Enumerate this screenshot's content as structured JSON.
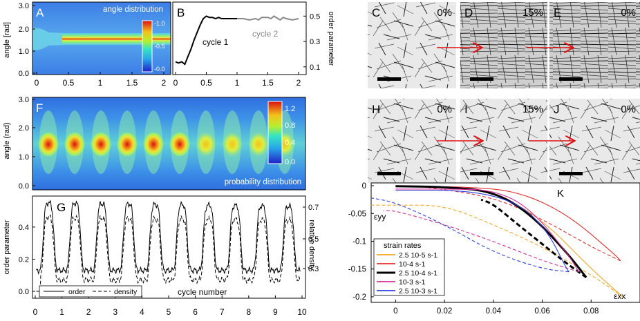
{
  "panels": {
    "A": {
      "label": "A",
      "title": "angle distribution",
      "ylabel": "angle [rad]",
      "y_ticks": [
        "3.0",
        "2.0",
        "1.0",
        "0.0"
      ],
      "x_ticks": [
        "0",
        "0.5",
        "1",
        "1.5",
        "2"
      ],
      "colorbar_ticks": [
        "1.0",
        "0.5",
        "0.0"
      ]
    },
    "B": {
      "label": "B",
      "y2label": "order parameter",
      "y_ticks": [
        "0.5",
        "0.3",
        "0.1"
      ],
      "x_ticks": [
        "0",
        "0.5",
        "1",
        "1.5",
        "2"
      ],
      "annotations": [
        "cycle 1",
        "cycle 2"
      ]
    },
    "F": {
      "label": "F",
      "title": "probability distribution",
      "ylabel": "angle (rad)",
      "y_ticks": [
        "3.0",
        "2.0",
        "1.0",
        "0.0"
      ],
      "colorbar_ticks": [
        "1.2",
        "0.8",
        "0.4",
        "0.0"
      ]
    },
    "G": {
      "label": "G",
      "ylabel": "order parameter",
      "y2label": "relative density",
      "y_ticks": [
        "0.4",
        "0.2",
        "0.0"
      ],
      "y2_ticks": [
        "0.7",
        "0.5",
        "0.3"
      ],
      "x_ticks": [
        "0",
        "1",
        "2",
        "3",
        "4",
        "5",
        "6",
        "7",
        "8",
        "9",
        "10"
      ],
      "xlabel": "cycle number",
      "legend": [
        "order",
        "density"
      ]
    },
    "K": {
      "label": "K",
      "ylabel": "εyy",
      "xlabel": "εxx",
      "y_ticks": [
        "0",
        "-0.05",
        "-0.1",
        "-0.15",
        "-0.2"
      ],
      "x_ticks": [
        "0",
        "0.02",
        "0.04",
        "0.06",
        "0.08"
      ],
      "legend_title": "strain rates",
      "legend": [
        "2.5 10-5 s-1",
        "10-4 s-1",
        "2.5 10-4 s-1",
        "10-3 s-1",
        "2.5 10-3 s-1"
      ]
    }
  },
  "image_panels": [
    {
      "label": "C",
      "pct": "0%"
    },
    {
      "label": "D",
      "pct": "15%"
    },
    {
      "label": "E",
      "pct": "0%"
    },
    {
      "label": "H",
      "pct": "0%"
    },
    {
      "label": "I",
      "pct": "15%"
    },
    {
      "label": "J",
      "pct": "0%"
    }
  ],
  "chart_data": [
    {
      "type": "heatmap",
      "panel": "A",
      "title": "angle distribution",
      "ylabel": "angle [rad]",
      "xlim": [
        0,
        2
      ],
      "ylim": [
        0,
        3
      ],
      "colorbar_range": [
        0,
        1.0
      ]
    },
    {
      "type": "line",
      "panel": "B",
      "ylabel": "order parameter",
      "xlim": [
        0,
        2
      ],
      "ylim": [
        0.05,
        0.6
      ],
      "series": [
        {
          "name": "cycle 1",
          "x": [
            0,
            0.05,
            0.1,
            0.15,
            0.2,
            0.25,
            0.3,
            0.35,
            0.4,
            0.45,
            0.5,
            0.55,
            0.6,
            0.65,
            0.7,
            0.75,
            0.8,
            0.85,
            0.9,
            0.95,
            1.0
          ],
          "y": [
            0.14,
            0.13,
            0.14,
            0.12,
            0.18,
            0.24,
            0.31,
            0.37,
            0.43,
            0.48,
            0.5,
            0.49,
            0.49,
            0.48,
            0.49,
            0.48,
            0.48,
            0.48,
            0.48,
            0.48,
            0.48
          ]
        },
        {
          "name": "cycle 2",
          "x": [
            1.0,
            1.1,
            1.2,
            1.3,
            1.35,
            1.4,
            1.5,
            1.55,
            1.6,
            1.7,
            1.75,
            1.8,
            1.9,
            2.0
          ],
          "y": [
            0.48,
            0.48,
            0.47,
            0.48,
            0.47,
            0.49,
            0.49,
            0.48,
            0.5,
            0.47,
            0.49,
            0.48,
            0.47,
            0.48
          ]
        }
      ]
    },
    {
      "type": "heatmap",
      "panel": "F",
      "title": "probability distribution",
      "ylabel": "angle (rad)",
      "xlim": [
        0,
        10
      ],
      "ylim": [
        0,
        3
      ],
      "colorbar_range": [
        0,
        1.2
      ]
    },
    {
      "type": "line",
      "panel": "G",
      "xlabel": "cycle number",
      "ylabel": "order parameter",
      "y2label": "relative density",
      "xlim": [
        0,
        10
      ],
      "ylim": [
        -0.03,
        0.58
      ],
      "series": [
        {
          "name": "order",
          "peak": 0.55,
          "trough": 0.13
        },
        {
          "name": "density",
          "peak": 0.46,
          "trough": 0.07
        }
      ]
    },
    {
      "type": "line",
      "panel": "K",
      "xlabel": "εxx",
      "ylabel": "εyy",
      "xlim": [
        -0.01,
        0.1
      ],
      "ylim": [
        -0.21,
        0.005
      ],
      "series": [
        {
          "name": "2.5 10-5 s-1",
          "color": "#f2a623",
          "style": "mixed",
          "load": [
            [
              0,
              -0.001
            ],
            [
              0.02,
              -0.003
            ],
            [
              0.04,
              -0.01
            ],
            [
              0.06,
              -0.06
            ],
            [
              0.08,
              -0.15
            ],
            [
              0.093,
              -0.2
            ]
          ],
          "unload": [
            [
              0.093,
              -0.2
            ],
            [
              0.08,
              -0.16
            ],
            [
              0.06,
              -0.11
            ],
            [
              0.04,
              -0.07
            ],
            [
              0.02,
              -0.035
            ],
            [
              0,
              -0.035
            ],
            [
              -0.01,
              -0.035
            ]
          ]
        },
        {
          "name": "10-4 s-1",
          "color": "#e62d2d",
          "style": "mixed",
          "load": [
            [
              0,
              -0.001
            ],
            [
              0.03,
              -0.002
            ],
            [
              0.05,
              -0.01
            ],
            [
              0.07,
              -0.05
            ],
            [
              0.09,
              -0.125
            ],
            [
              0.092,
              -0.135
            ]
          ],
          "unload": [
            [
              0.092,
              -0.135
            ],
            [
              0.08,
              -0.11
            ],
            [
              0.06,
              -0.06
            ],
            [
              0.04,
              -0.02
            ],
            [
              0.01,
              -0.001
            ]
          ]
        },
        {
          "name": "2.5 10-4 s-1",
          "color": "#000000",
          "style": "mixed",
          "load": [
            [
              0,
              -0.001
            ],
            [
              0.02,
              -0.002
            ],
            [
              0.04,
              -0.01
            ],
            [
              0.055,
              -0.05
            ],
            [
              0.07,
              -0.12
            ],
            [
              0.078,
              -0.165
            ]
          ],
          "unload": [
            [
              0.078,
              -0.165
            ],
            [
              0.07,
              -0.14
            ],
            [
              0.06,
              -0.105
            ],
            [
              0.05,
              -0.07
            ],
            [
              0.04,
              -0.033
            ],
            [
              0.035,
              -0.025
            ]
          ]
        },
        {
          "name": "10-3 s-1",
          "color": "#d62f9a",
          "style": "mixed",
          "load": [
            [
              0,
              -0.006
            ],
            [
              0.02,
              -0.006
            ],
            [
              0.04,
              -0.007
            ],
            [
              0.055,
              -0.04
            ],
            [
              0.07,
              -0.12
            ],
            [
              0.075,
              -0.155
            ]
          ],
          "unload": [
            [
              0.075,
              -0.155
            ],
            [
              0.06,
              -0.135
            ],
            [
              0.04,
              -0.1
            ],
            [
              0.02,
              -0.07
            ],
            [
              0,
              -0.045
            ],
            [
              -0.005,
              -0.045
            ]
          ]
        },
        {
          "name": "2.5 10-3 s-1",
          "color": "#2b3ee0",
          "style": "mixed",
          "load": [
            [
              0,
              -0.008
            ],
            [
              0.03,
              -0.008
            ],
            [
              0.05,
              -0.03
            ],
            [
              0.062,
              -0.08
            ],
            [
              0.07,
              -0.15
            ],
            [
              0.071,
              -0.155
            ]
          ],
          "unload": [
            [
              0.071,
              -0.155
            ],
            [
              0.06,
              -0.15
            ],
            [
              0.04,
              -0.12
            ],
            [
              0.02,
              -0.07
            ],
            [
              0,
              -0.03
            ],
            [
              -0.01,
              -0.022
            ]
          ]
        }
      ]
    }
  ]
}
